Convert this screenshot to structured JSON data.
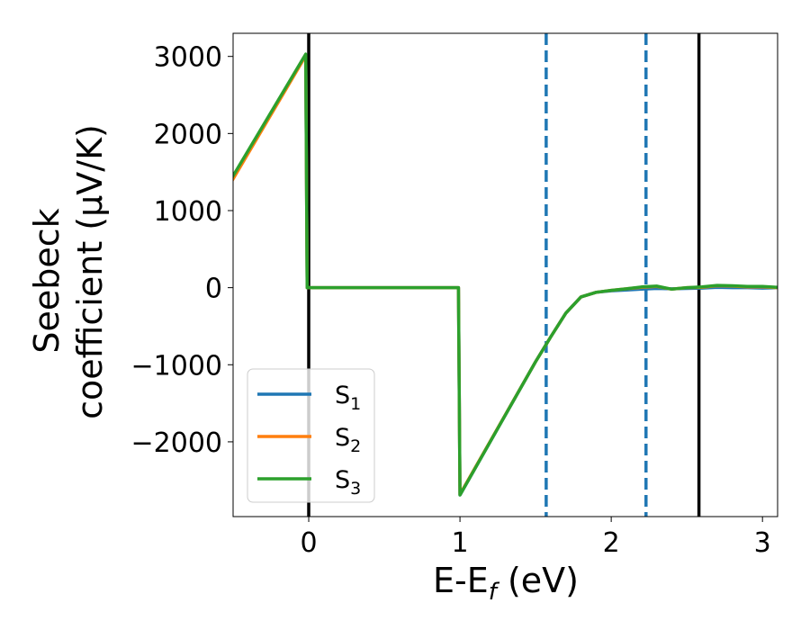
{
  "chart_data": {
    "type": "line",
    "xlabel": "E-E",
    "xlabel_sub": "f",
    "xlabel_unit": " (eV)",
    "ylabel_line1": "Seebeck",
    "ylabel_line2": "coefficient  (μV/K)",
    "xlim": [
      -0.5,
      3.1
    ],
    "ylim": [
      -2970,
      3300
    ],
    "xticks": [
      0,
      1,
      2,
      3
    ],
    "xtick_labels": [
      "0",
      "1",
      "2",
      "3"
    ],
    "yticks": [
      -2000,
      -1000,
      0,
      1000,
      2000,
      3000
    ],
    "ytick_labels": [
      "−2000",
      "−1000",
      "0",
      "1000",
      "2000",
      "3000"
    ],
    "legend_position": "lower-left",
    "vlines": [
      {
        "x": 0.0,
        "style": "solid",
        "color": "#000000"
      },
      {
        "x": 2.58,
        "style": "solid",
        "color": "#000000"
      },
      {
        "x": 1.57,
        "style": "dashed",
        "color": "#1f77b4"
      },
      {
        "x": 2.23,
        "style": "dashed",
        "color": "#1f77b4"
      }
    ],
    "series": [
      {
        "name": "S",
        "sub": "1",
        "color": "#1f77b4",
        "x": [
          -0.5,
          -0.02,
          -0.01,
          0.99,
          1.0,
          1.5,
          1.6,
          1.7,
          1.8,
          1.9,
          2.0,
          2.1,
          2.2,
          2.3,
          2.4,
          2.5,
          2.6,
          2.7,
          2.8,
          2.9,
          3.0,
          3.1
        ],
        "y": [
          1430,
          3020,
          0,
          0,
          -2690,
          -960,
          -640,
          -330,
          -120,
          -60,
          -40,
          -30,
          -20,
          -10,
          -15,
          -10,
          -5,
          5,
          0,
          0,
          -5,
          0
        ]
      },
      {
        "name": "S",
        "sub": "2",
        "color": "#ff7f0e",
        "x": [
          -0.5,
          -0.02,
          -0.01,
          0.99,
          1.0,
          1.5,
          1.6,
          1.7,
          1.8,
          1.9,
          2.0,
          2.1,
          2.2,
          2.3,
          2.4,
          2.5,
          2.6,
          2.7,
          2.8,
          2.9,
          3.0,
          3.1
        ],
        "y": [
          1410,
          3010,
          0,
          0,
          -2680,
          -960,
          -640,
          -330,
          -120,
          -60,
          -35,
          -15,
          5,
          15,
          -20,
          0,
          5,
          25,
          20,
          10,
          10,
          0
        ]
      },
      {
        "name": "S",
        "sub": "3",
        "color": "#2ca02c",
        "x": [
          -0.5,
          -0.02,
          -0.01,
          0.99,
          1.0,
          1.5,
          1.6,
          1.7,
          1.8,
          1.9,
          2.0,
          2.1,
          2.2,
          2.3,
          2.4,
          2.5,
          2.6,
          2.7,
          2.8,
          2.9,
          3.0,
          3.1
        ],
        "y": [
          1450,
          3030,
          0,
          0,
          -2690,
          -960,
          -640,
          -330,
          -120,
          -60,
          -35,
          -15,
          10,
          20,
          -20,
          0,
          10,
          30,
          25,
          15,
          15,
          5
        ]
      }
    ]
  }
}
